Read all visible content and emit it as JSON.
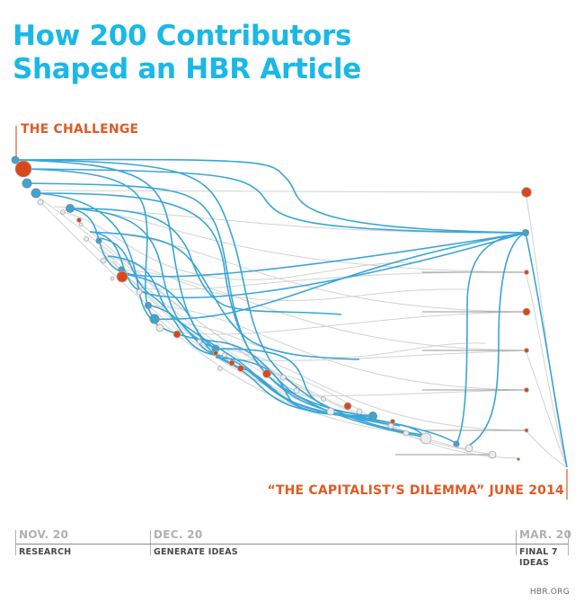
{
  "title": {
    "line1": "How 200 Contributors",
    "line2": "Shaped an HBR Article"
  },
  "start_label": "THE CHALLENGE",
  "end_label": "“THE CAPITALIST’S DILEMMA” JUNE 2014",
  "timeline": {
    "phases": [
      {
        "date": "NOV. 20",
        "label": "RESEARCH"
      },
      {
        "date": "DEC. 20",
        "label": "GENERATE IDEAS"
      },
      {
        "date": "MAR. 20",
        "label": "FINAL 7 IDEAS"
      }
    ]
  },
  "credit": "HBR.ORG",
  "colors": {
    "title": "#1ab8e6",
    "accent": "#e05a24",
    "flow_highlight": "#3aa6d6",
    "flow_background": "#d4d4d4"
  }
}
